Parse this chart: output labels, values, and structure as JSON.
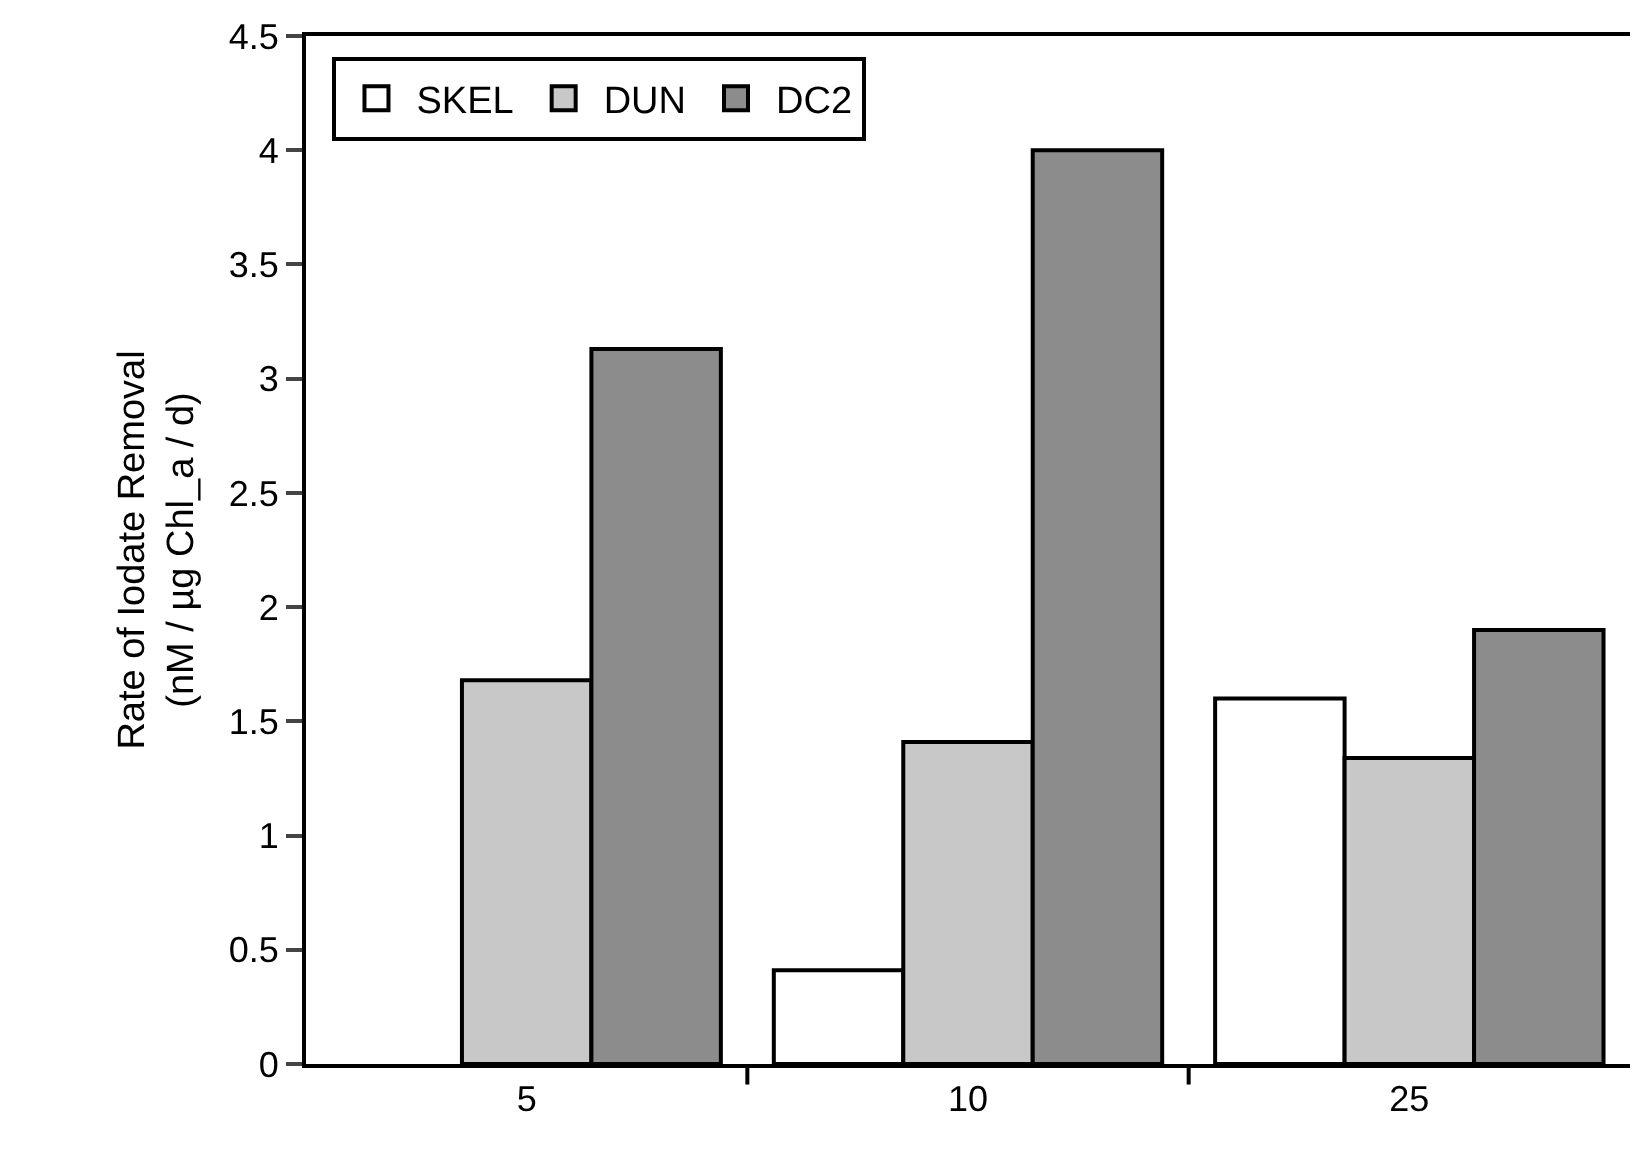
{
  "chart_data": {
    "type": "bar",
    "categories": [
      "5",
      "10",
      "25"
    ],
    "ylabel": "Rate of Iodate Removal\n(nM / µg Chl_a / d)",
    "series": [
      {
        "name": "SKEL",
        "color": "#ffffff",
        "values": [
          null,
          0.41,
          1.6
        ]
      },
      {
        "name": "DUN",
        "color": "#c8c8c8",
        "values": [
          1.68,
          1.41,
          1.34
        ]
      },
      {
        "name": "DC2",
        "color": "#8c8c8c",
        "values": [
          3.13,
          4.0,
          1.9
        ]
      }
    ],
    "ylim": [
      0,
      4.5
    ],
    "yticks": [
      0,
      0.5,
      1,
      1.5,
      2,
      2.5,
      3,
      3.5,
      4,
      4.5
    ],
    "grid": false,
    "legend": "top left"
  }
}
